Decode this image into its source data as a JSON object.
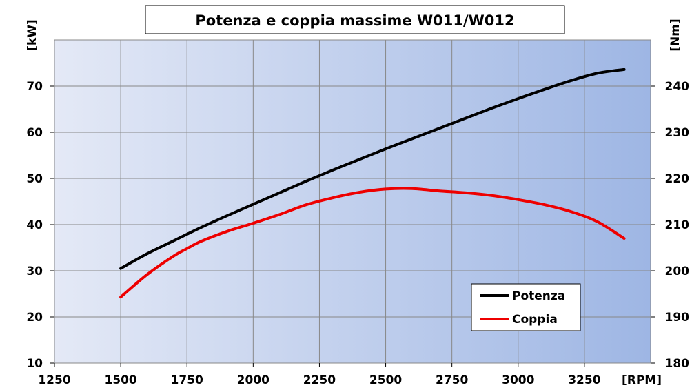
{
  "chart_data": {
    "type": "line",
    "title": "Potenza e coppia massime W011/W012",
    "xlabel": "[RPM]",
    "ylabel_left": "[kW]",
    "ylabel_right": "[Nm]",
    "xlim": [
      1250,
      3500
    ],
    "ylim_left": [
      10,
      80
    ],
    "ylim_right": [
      180,
      250
    ],
    "x_ticks": [
      1250,
      1500,
      1750,
      2000,
      2250,
      2500,
      2750,
      3000,
      3250
    ],
    "y_ticks_left": [
      10,
      20,
      30,
      40,
      50,
      60,
      70
    ],
    "y_ticks_right": [
      180,
      190,
      200,
      210,
      220,
      230,
      240
    ],
    "grid": true,
    "legend_position": "bottom-right",
    "background_gradient": [
      "#e4e9f6",
      "#9eb6e4"
    ],
    "series": [
      {
        "name": "Potenza",
        "axis": "left",
        "color": "#000000",
        "points": [
          [
            1500,
            30.5
          ],
          [
            1600,
            33.7
          ],
          [
            1700,
            36.5
          ],
          [
            1800,
            39.3
          ],
          [
            1900,
            41.9
          ],
          [
            2000,
            44.4
          ],
          [
            2100,
            46.9
          ],
          [
            2200,
            49.4
          ],
          [
            2300,
            51.8
          ],
          [
            2400,
            54.1
          ],
          [
            2500,
            56.4
          ],
          [
            2600,
            58.6
          ],
          [
            2700,
            60.8
          ],
          [
            2800,
            63.0
          ],
          [
            2900,
            65.2
          ],
          [
            3000,
            67.3
          ],
          [
            3100,
            69.3
          ],
          [
            3200,
            71.2
          ],
          [
            3300,
            72.8
          ],
          [
            3400,
            73.6
          ]
        ]
      },
      {
        "name": "Coppia",
        "axis": "right",
        "color": "#ee0000",
        "points": [
          [
            1500,
            194.3
          ],
          [
            1600,
            199.2
          ],
          [
            1700,
            203.2
          ],
          [
            1750,
            204.8
          ],
          [
            1800,
            206.3
          ],
          [
            1900,
            208.5
          ],
          [
            2000,
            210.3
          ],
          [
            2100,
            212.2
          ],
          [
            2200,
            214.3
          ],
          [
            2300,
            215.8
          ],
          [
            2400,
            217.0
          ],
          [
            2500,
            217.7
          ],
          [
            2600,
            217.8
          ],
          [
            2700,
            217.3
          ],
          [
            2800,
            216.9
          ],
          [
            2900,
            216.3
          ],
          [
            3000,
            215.4
          ],
          [
            3100,
            214.3
          ],
          [
            3200,
            212.8
          ],
          [
            3300,
            210.6
          ],
          [
            3400,
            207.0
          ]
        ]
      }
    ]
  }
}
